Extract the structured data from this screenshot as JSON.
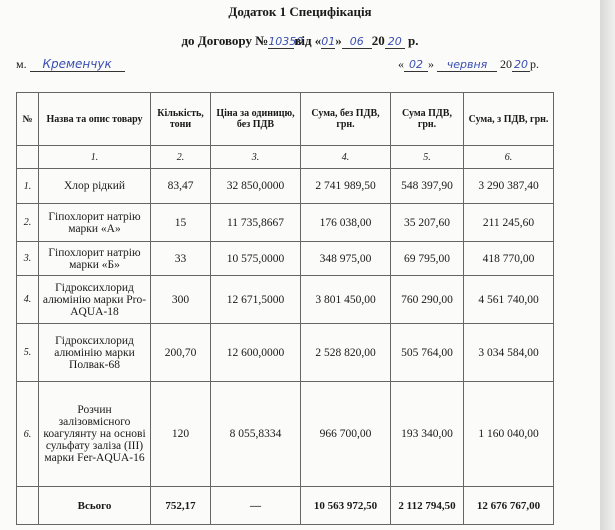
{
  "title": "Додаток 1 Специфікація",
  "contract": {
    "prefix": "до Договору №",
    "number": "10350",
    "from": "від «",
    "day": "01",
    "mid": "»",
    "month": "06",
    "year_prefix": "20",
    "year": "20",
    "suffix": "р."
  },
  "place": {
    "prefix": "м.",
    "city": "Кременчук"
  },
  "date": {
    "open": "«",
    "day": "02",
    "close": "»",
    "month": "червня",
    "year_prefix": "20",
    "year": "20",
    "suffix": "р."
  },
  "table": {
    "headers": [
      "№",
      "Назва та опис товару",
      "Кількість, тони",
      "Ціна за одиницю, без ПДВ",
      "Сума, без ПДВ, грн.",
      "Сума ПДВ, грн.",
      "Сума, з ПДВ, грн."
    ],
    "index_row": [
      "",
      "1.",
      "2.",
      "3.",
      "4.",
      "5.",
      "6."
    ],
    "rows": [
      [
        "1.",
        "Хлор рідкий",
        "83,47",
        "32 850,0000",
        "2 741 989,50",
        "548 397,90",
        "3 290 387,40"
      ],
      [
        "2.",
        "Гіпохлорит натрію марки «А»",
        "15",
        "11 735,8667",
        "176 038,00",
        "35 207,60",
        "211 245,60"
      ],
      [
        "3.",
        "Гіпохлорит натрію марки «Б»",
        "33",
        "10 575,0000",
        "348 975,00",
        "69 795,00",
        "418 770,00"
      ],
      [
        "4.",
        "Гідроксихлорид алюмінію марки Pro-AQUA-18",
        "300",
        "12 671,5000",
        "3 801 450,00",
        "760 290,00",
        "4 561 740,00"
      ],
      [
        "5.",
        "Гідроксихлорид алюмінію марки Полвак-68",
        "200,70",
        "12 600,0000",
        "2 528 820,00",
        "505 764,00",
        "3 034 584,00"
      ],
      [
        "6.",
        "Розчин залізовмісного коагулянту на основі сульфату заліза (ІІІ) марки Fer-AQUA-16",
        "120",
        "8 055,8334",
        "966 700,00",
        "193 340,00",
        "1 160 040,00"
      ]
    ],
    "total": [
      "",
      "Всього",
      "752,17",
      "—",
      "10 563 972,50",
      "2 112 794,50",
      "12 676 767,00"
    ]
  },
  "colors": {
    "ink": "#3a4fb0",
    "paper": "#fbfbfa"
  }
}
